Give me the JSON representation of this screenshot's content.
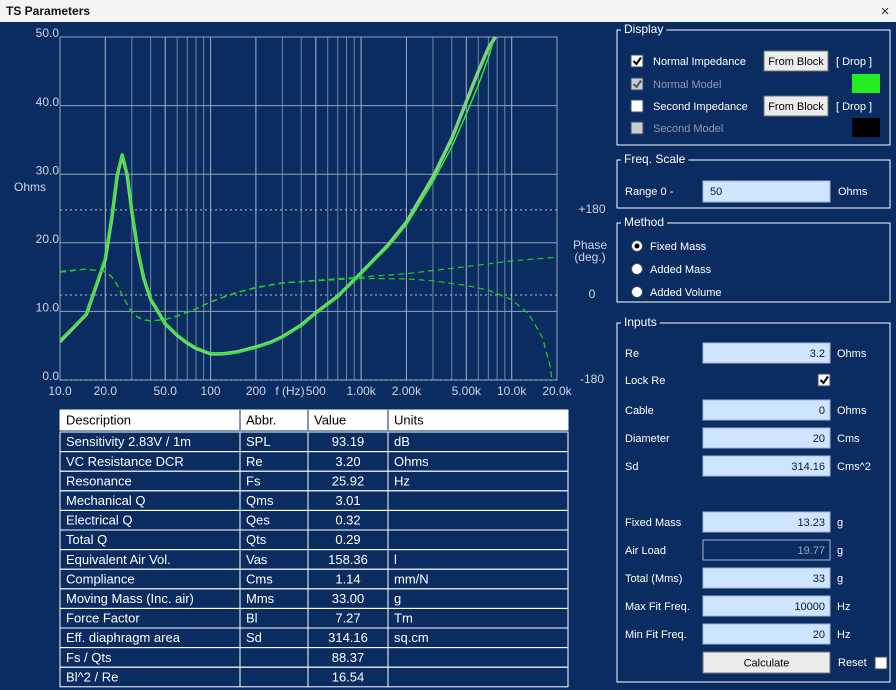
{
  "window": {
    "title": "TS Parameters",
    "close": "×"
  },
  "chart_data": {
    "type": "line",
    "log_x": true,
    "grid": true,
    "xlabel": "f (Hz)",
    "ylabel": "Ohms",
    "y2label": [
      "Phase",
      "(deg.)"
    ],
    "xlim": [
      10,
      20000
    ],
    "xticks": [
      {
        "value": 10,
        "label": "10.0"
      },
      {
        "value": 20,
        "label": "20.0"
      },
      {
        "value": 50,
        "label": "50.0"
      },
      100,
      200,
      500,
      {
        "value": 1000,
        "label": "1.00k"
      },
      {
        "value": 2000,
        "label": "2.00k"
      },
      {
        "value": 5000,
        "label": "5.00k"
      },
      {
        "value": 10000,
        "label": "10.0k"
      },
      {
        "value": 20000,
        "label": "20.0k"
      }
    ],
    "ylim": [
      0,
      50
    ],
    "yticks": [
      {
        "value": 0,
        "label": "0.0"
      },
      {
        "value": 10,
        "label": "10.0"
      },
      {
        "value": 20,
        "label": "20.0"
      },
      {
        "value": 30,
        "label": "30.0"
      },
      {
        "value": 40,
        "label": "40.0"
      },
      {
        "value": 50,
        "label": "50.0"
      }
    ],
    "y2lim": [
      -180,
      546
    ],
    "y2ticks": [
      {
        "value": 180,
        "label": "+180"
      },
      0,
      -180
    ],
    "series": [
      {
        "color": "#7fd07f",
        "width": 3.5,
        "dash": false,
        "x": [
          10,
          15,
          20,
          22,
          24,
          25.9,
          28,
          30,
          33,
          36,
          40,
          50,
          60,
          70,
          80,
          100,
          120,
          150,
          200,
          250,
          300,
          400,
          500,
          700,
          1000,
          1500,
          2000,
          3000,
          4000,
          5000,
          6000,
          7000,
          7800
        ],
        "values": [
          5.6,
          9.6,
          17.6,
          23.4,
          29.8,
          32.8,
          29.8,
          24.6,
          18.6,
          14.8,
          11.8,
          8.2,
          6.5,
          5.4,
          4.6,
          3.8,
          3.8,
          4.1,
          4.8,
          5.5,
          6.3,
          8.0,
          9.8,
          12.2,
          15.6,
          19.6,
          23.0,
          29.6,
          35.2,
          40.6,
          45.0,
          48.4,
          50.0
        ]
      },
      {
        "color": "#2cec2c",
        "width": 1.5,
        "dash": false,
        "x": [
          10,
          15,
          20,
          22,
          24,
          25.9,
          28,
          30,
          33,
          36,
          40,
          50,
          60,
          70,
          80,
          100,
          120,
          150,
          200,
          250,
          300,
          400,
          500,
          700,
          1000,
          1500,
          2000,
          3000,
          4000,
          5000,
          6000,
          7000,
          7500
        ],
        "values": [
          5.9,
          9.7,
          18.0,
          23.8,
          30.3,
          33.0,
          30.3,
          25.0,
          18.9,
          15.1,
          12.0,
          8.2,
          6.6,
          5.6,
          4.8,
          3.9,
          3.8,
          4.0,
          4.7,
          5.4,
          6.2,
          7.9,
          9.6,
          12.1,
          15.5,
          19.3,
          22.6,
          28.9,
          34.0,
          38.8,
          43.0,
          47.0,
          49.2
        ]
      },
      {
        "color": "#22cc22",
        "width": 1.2,
        "dash": true,
        "axis": "y2",
        "x": [
          10,
          15,
          20,
          22,
          24,
          25.9,
          28,
          30,
          33,
          36,
          40,
          50,
          60,
          80,
          100,
          150,
          200,
          300,
          500,
          1000,
          2000,
          3000,
          5000,
          7000,
          10000,
          13000,
          16000,
          18000,
          18500,
          18600,
          20000
        ],
        "values": [
          50,
          55,
          49,
          39,
          22,
          0,
          -20,
          -36,
          -47,
          -52,
          -55,
          -52,
          -45,
          -30,
          -15,
          5,
          15,
          25,
          30,
          35,
          34,
          30,
          20,
          10,
          -10,
          -40,
          -90,
          -150,
          -180,
          null,
          150
        ]
      },
      {
        "color": "#22cc22",
        "width": 1.2,
        "dash": true,
        "axis": "y2",
        "x": [
          10,
          15,
          20,
          22,
          24,
          25.9,
          28,
          30,
          33,
          36,
          40,
          50,
          60,
          80,
          100,
          150,
          200,
          300,
          500,
          1000,
          2000,
          5000,
          10000,
          20000
        ],
        "values": [
          48,
          55,
          49,
          38,
          21,
          0,
          -21,
          -37,
          -48,
          -53,
          -55,
          -52,
          -44,
          -29,
          -14,
          6,
          16,
          26,
          31,
          38,
          45,
          60,
          72,
          80
        ]
      }
    ]
  },
  "table": {
    "header": [
      "Description",
      "Abbr.",
      "Value",
      "Units"
    ],
    "rows": [
      [
        "Sensitivity 2.83V / 1m",
        "SPL",
        "93.19",
        "dB"
      ],
      [
        "VC Resistance DCR",
        "Re",
        "3.20",
        "Ohms"
      ],
      [
        "Resonance",
        "Fs",
        "25.92",
        "Hz"
      ],
      [
        "Mechanical Q",
        "Qms",
        "3.01",
        null
      ],
      [
        "Electrical Q",
        "Qes",
        "0.32",
        null
      ],
      [
        "Total Q",
        "Qts",
        "0.29",
        null
      ],
      [
        "Equivalent Air Vol.",
        "Vas",
        "158.36",
        "l"
      ],
      [
        "Compliance",
        "Cms",
        "1.14",
        "mm/N"
      ],
      [
        "Moving Mass (Inc. air)",
        "Mms",
        "33.00",
        "g"
      ],
      [
        "Force Factor",
        "Bl",
        "7.27",
        "Tm"
      ],
      [
        "Eff. diaphragm area",
        "Sd",
        "314.16",
        "sq.cm"
      ],
      [
        "Fs / Qts",
        null,
        "88.37",
        null
      ],
      [
        "Bl^2 / Re",
        null,
        "16.54",
        null
      ]
    ]
  },
  "display": {
    "label": "Display",
    "rows": [
      {
        "label": "Normal Impedance",
        "checked": true,
        "disabled": false,
        "button": "From Block",
        "drop": "[ Drop ]"
      },
      {
        "label": "Normal Model",
        "checked": true,
        "disabled": true,
        "color": "#22ee22"
      },
      {
        "label": "Second Impedance",
        "checked": false,
        "disabled": false,
        "button": "From Block",
        "drop": "[ Drop ]"
      },
      {
        "label": "Second Model",
        "checked": false,
        "disabled": true,
        "color": "#000000"
      }
    ]
  },
  "freq_scale": {
    "label": "Freq. Scale",
    "range_label": "Range 0 -",
    "value": "50",
    "unit": "Ohms"
  },
  "method": {
    "label": "Method",
    "options": [
      "Fixed Mass",
      "Added Mass",
      "Added Volume"
    ],
    "selected": 0
  },
  "inputs": {
    "label": "Inputs",
    "fields": [
      {
        "label": "Re",
        "value": "3.2",
        "unit": "Ohms"
      },
      {
        "label": "Lock Re",
        "checked": true
      },
      {
        "label": "Cable",
        "value": "0",
        "unit": "Ohms"
      },
      {
        "label": "Diameter",
        "value": "20",
        "unit": "Cms"
      },
      {
        "label": "Sd",
        "value": "314.16",
        "unit": "Cms^2"
      },
      {
        "label": "Fixed Mass",
        "value": "13.23",
        "unit": "g"
      },
      {
        "label": "Air Load",
        "value": "19.77",
        "unit": "g",
        "disabled": true
      },
      {
        "label": "Total (Mms)",
        "value": "33",
        "unit": "g"
      },
      {
        "label": "Max Fit Freq.",
        "value": "10000",
        "unit": "Hz"
      },
      {
        "label": "Min Fit Freq.",
        "value": "20",
        "unit": "Hz"
      }
    ],
    "button": "Calculate",
    "reset": "Reset",
    "reset_checked": false
  }
}
